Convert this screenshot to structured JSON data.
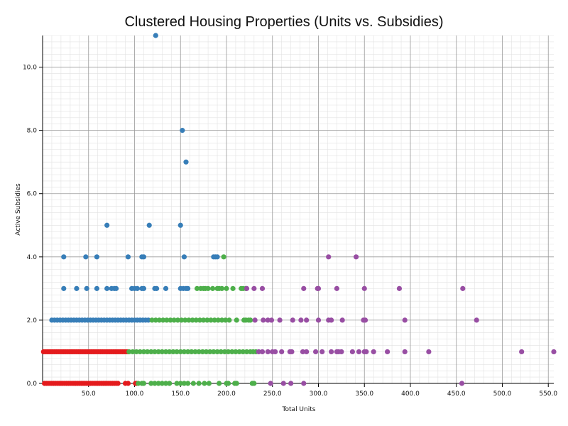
{
  "chart_data": {
    "type": "scatter",
    "title": "Clustered Housing Properties (Units vs. Subsidies)",
    "xlabel": "Total Units",
    "ylabel": "Active Subsidies",
    "xlim": [
      0,
      556
    ],
    "ylim": [
      0,
      11
    ],
    "x_ticks": [
      "50.0",
      "100.0",
      "150.0",
      "200.0",
      "250.0",
      "300.0",
      "350.0",
      "400.0",
      "450.0",
      "500.0",
      "550.0"
    ],
    "y_ticks": [
      "0.0",
      "2.0",
      "4.0",
      "6.0",
      "8.0",
      "10.0"
    ],
    "grid": true,
    "legend": "none",
    "series": [
      {
        "color": "#e41a1c",
        "points": [
          [
            2,
            0
          ],
          [
            4,
            0
          ],
          [
            6,
            0
          ],
          [
            8,
            0
          ],
          [
            10,
            0
          ],
          [
            12,
            0
          ],
          [
            14,
            0
          ],
          [
            16,
            0
          ],
          [
            18,
            0
          ],
          [
            20,
            0
          ],
          [
            22,
            0
          ],
          [
            24,
            0
          ],
          [
            26,
            0
          ],
          [
            28,
            0
          ],
          [
            30,
            0
          ],
          [
            32,
            0
          ],
          [
            34,
            0
          ],
          [
            36,
            0
          ],
          [
            38,
            0
          ],
          [
            40,
            0
          ],
          [
            42,
            0
          ],
          [
            44,
            0
          ],
          [
            46,
            0
          ],
          [
            48,
            0
          ],
          [
            50,
            0
          ],
          [
            52,
            0
          ],
          [
            54,
            0
          ],
          [
            56,
            0
          ],
          [
            58,
            0
          ],
          [
            60,
            0
          ],
          [
            62,
            0
          ],
          [
            64,
            0
          ],
          [
            66,
            0
          ],
          [
            68,
            0
          ],
          [
            70,
            0
          ],
          [
            72,
            0
          ],
          [
            74,
            0
          ],
          [
            76,
            0
          ],
          [
            78,
            0
          ],
          [
            80,
            0
          ],
          [
            82,
            0
          ],
          [
            90,
            0
          ],
          [
            93,
            0
          ],
          [
            101,
            0
          ],
          [
            102,
            0
          ],
          [
            1,
            1
          ],
          [
            3,
            1
          ],
          [
            5,
            1
          ],
          [
            7,
            1
          ],
          [
            9,
            1
          ],
          [
            11,
            1
          ],
          [
            13,
            1
          ],
          [
            15,
            1
          ],
          [
            17,
            1
          ],
          [
            19,
            1
          ],
          [
            21,
            1
          ],
          [
            23,
            1
          ],
          [
            25,
            1
          ],
          [
            27,
            1
          ],
          [
            29,
            1
          ],
          [
            31,
            1
          ],
          [
            33,
            1
          ],
          [
            35,
            1
          ],
          [
            37,
            1
          ],
          [
            39,
            1
          ],
          [
            41,
            1
          ],
          [
            43,
            1
          ],
          [
            45,
            1
          ],
          [
            47,
            1
          ],
          [
            49,
            1
          ],
          [
            51,
            1
          ],
          [
            53,
            1
          ],
          [
            55,
            1
          ],
          [
            57,
            1
          ],
          [
            59,
            1
          ],
          [
            61,
            1
          ],
          [
            63,
            1
          ],
          [
            65,
            1
          ],
          [
            67,
            1
          ],
          [
            69,
            1
          ],
          [
            71,
            1
          ],
          [
            73,
            1
          ],
          [
            75,
            1
          ],
          [
            77,
            1
          ],
          [
            79,
            1
          ],
          [
            81,
            1
          ],
          [
            83,
            1
          ],
          [
            85,
            1
          ],
          [
            87,
            1
          ],
          [
            89,
            1
          ],
          [
            91,
            1
          ],
          [
            93,
            1
          ]
        ]
      },
      {
        "color": "#377eb8",
        "points": [
          [
            123,
            11
          ],
          [
            152,
            8
          ],
          [
            156,
            7
          ],
          [
            70,
            5
          ],
          [
            116,
            5
          ],
          [
            150,
            5
          ],
          [
            23,
            4
          ],
          [
            47,
            4
          ],
          [
            59,
            4
          ],
          [
            93,
            4
          ],
          [
            108,
            4
          ],
          [
            110,
            4
          ],
          [
            154,
            4
          ],
          [
            186,
            4
          ],
          [
            188,
            4
          ],
          [
            190,
            4
          ],
          [
            23,
            3
          ],
          [
            37,
            3
          ],
          [
            48,
            3
          ],
          [
            59,
            3
          ],
          [
            70,
            3
          ],
          [
            75,
            3
          ],
          [
            78,
            3
          ],
          [
            80,
            3
          ],
          [
            97,
            3
          ],
          [
            100,
            3
          ],
          [
            103,
            3
          ],
          [
            108,
            3
          ],
          [
            110,
            3
          ],
          [
            122,
            3
          ],
          [
            124,
            3
          ],
          [
            134,
            3
          ],
          [
            150,
            3
          ],
          [
            153,
            3
          ],
          [
            156,
            3
          ],
          [
            158,
            3
          ],
          [
            10,
            2
          ],
          [
            13,
            2
          ],
          [
            16,
            2
          ],
          [
            19,
            2
          ],
          [
            22,
            2
          ],
          [
            25,
            2
          ],
          [
            28,
            2
          ],
          [
            31,
            2
          ],
          [
            34,
            2
          ],
          [
            37,
            2
          ],
          [
            40,
            2
          ],
          [
            43,
            2
          ],
          [
            46,
            2
          ],
          [
            49,
            2
          ],
          [
            52,
            2
          ],
          [
            55,
            2
          ],
          [
            58,
            2
          ],
          [
            61,
            2
          ],
          [
            64,
            2
          ],
          [
            67,
            2
          ],
          [
            70,
            2
          ],
          [
            73,
            2
          ],
          [
            76,
            2
          ],
          [
            79,
            2
          ],
          [
            82,
            2
          ],
          [
            85,
            2
          ],
          [
            88,
            2
          ],
          [
            91,
            2
          ],
          [
            94,
            2
          ],
          [
            97,
            2
          ],
          [
            100,
            2
          ],
          [
            103,
            2
          ],
          [
            106,
            2
          ],
          [
            109,
            2
          ],
          [
            112,
            2
          ],
          [
            115,
            2
          ]
        ]
      },
      {
        "color": "#4daf4a",
        "points": [
          [
            197,
            4
          ],
          [
            168,
            3
          ],
          [
            172,
            3
          ],
          [
            175,
            3
          ],
          [
            177,
            3
          ],
          [
            180,
            3
          ],
          [
            185,
            3
          ],
          [
            190,
            3
          ],
          [
            192,
            3
          ],
          [
            195,
            3
          ],
          [
            200,
            3
          ],
          [
            207,
            3
          ],
          [
            216,
            3
          ],
          [
            218,
            3
          ],
          [
            221,
            3
          ],
          [
            119,
            2
          ],
          [
            123,
            2
          ],
          [
            127,
            2
          ],
          [
            131,
            2
          ],
          [
            135,
            2
          ],
          [
            139,
            2
          ],
          [
            143,
            2
          ],
          [
            147,
            2
          ],
          [
            151,
            2
          ],
          [
            155,
            2
          ],
          [
            159,
            2
          ],
          [
            163,
            2
          ],
          [
            167,
            2
          ],
          [
            171,
            2
          ],
          [
            175,
            2
          ],
          [
            179,
            2
          ],
          [
            183,
            2
          ],
          [
            187,
            2
          ],
          [
            191,
            2
          ],
          [
            195,
            2
          ],
          [
            199,
            2
          ],
          [
            203,
            2
          ],
          [
            211,
            2
          ],
          [
            219,
            2
          ],
          [
            221,
            2
          ],
          [
            224,
            2
          ],
          [
            226,
            2
          ],
          [
            94,
            1
          ],
          [
            98,
            1
          ],
          [
            102,
            1
          ],
          [
            106,
            1
          ],
          [
            110,
            1
          ],
          [
            114,
            1
          ],
          [
            118,
            1
          ],
          [
            122,
            1
          ],
          [
            126,
            1
          ],
          [
            130,
            1
          ],
          [
            134,
            1
          ],
          [
            138,
            1
          ],
          [
            142,
            1
          ],
          [
            146,
            1
          ],
          [
            150,
            1
          ],
          [
            154,
            1
          ],
          [
            158,
            1
          ],
          [
            162,
            1
          ],
          [
            166,
            1
          ],
          [
            170,
            1
          ],
          [
            174,
            1
          ],
          [
            178,
            1
          ],
          [
            182,
            1
          ],
          [
            186,
            1
          ],
          [
            190,
            1
          ],
          [
            194,
            1
          ],
          [
            198,
            1
          ],
          [
            202,
            1
          ],
          [
            206,
            1
          ],
          [
            210,
            1
          ],
          [
            214,
            1
          ],
          [
            218,
            1
          ],
          [
            222,
            1
          ],
          [
            226,
            1
          ],
          [
            229,
            1
          ],
          [
            232,
            1
          ],
          [
            104,
            0
          ],
          [
            108,
            0
          ],
          [
            110,
            0
          ],
          [
            118,
            0
          ],
          [
            122,
            0
          ],
          [
            126,
            0
          ],
          [
            130,
            0
          ],
          [
            134,
            0
          ],
          [
            138,
            0
          ],
          [
            146,
            0
          ],
          [
            150,
            0
          ],
          [
            154,
            0
          ],
          [
            158,
            0
          ],
          [
            164,
            0
          ],
          [
            170,
            0
          ],
          [
            176,
            0
          ],
          [
            181,
            0
          ],
          [
            192,
            0
          ],
          [
            200,
            0
          ],
          [
            202,
            0
          ],
          [
            209,
            0
          ],
          [
            211,
            0
          ],
          [
            228,
            0
          ],
          [
            230,
            0
          ]
        ]
      },
      {
        "color": "#984ea3",
        "points": [
          [
            311,
            4
          ],
          [
            341,
            4
          ],
          [
            222,
            3
          ],
          [
            230,
            3
          ],
          [
            239,
            3
          ],
          [
            284,
            3
          ],
          [
            299,
            3
          ],
          [
            300,
            3
          ],
          [
            320,
            3
          ],
          [
            350,
            3
          ],
          [
            388,
            3
          ],
          [
            457,
            3
          ],
          [
            231,
            2
          ],
          [
            240,
            2
          ],
          [
            245,
            2
          ],
          [
            249,
            2
          ],
          [
            258,
            2
          ],
          [
            272,
            2
          ],
          [
            281,
            2
          ],
          [
            287,
            2
          ],
          [
            300,
            2
          ],
          [
            311,
            2
          ],
          [
            314,
            2
          ],
          [
            326,
            2
          ],
          [
            349,
            2
          ],
          [
            351,
            2
          ],
          [
            394,
            2
          ],
          [
            472,
            2
          ],
          [
            235,
            1
          ],
          [
            239,
            1
          ],
          [
            245,
            1
          ],
          [
            250,
            1
          ],
          [
            253,
            1
          ],
          [
            260,
            1
          ],
          [
            269,
            1
          ],
          [
            271,
            1
          ],
          [
            283,
            1
          ],
          [
            287,
            1
          ],
          [
            297,
            1
          ],
          [
            304,
            1
          ],
          [
            314,
            1
          ],
          [
            320,
            1
          ],
          [
            322,
            1
          ],
          [
            325,
            1
          ],
          [
            337,
            1
          ],
          [
            344,
            1
          ],
          [
            350,
            1
          ],
          [
            352,
            1
          ],
          [
            360,
            1
          ],
          [
            375,
            1
          ],
          [
            394,
            1
          ],
          [
            420,
            1
          ],
          [
            521,
            1
          ],
          [
            556,
            1
          ],
          [
            248,
            0
          ],
          [
            262,
            0
          ],
          [
            270,
            0
          ],
          [
            284,
            0
          ],
          [
            456,
            0
          ]
        ]
      }
    ]
  }
}
